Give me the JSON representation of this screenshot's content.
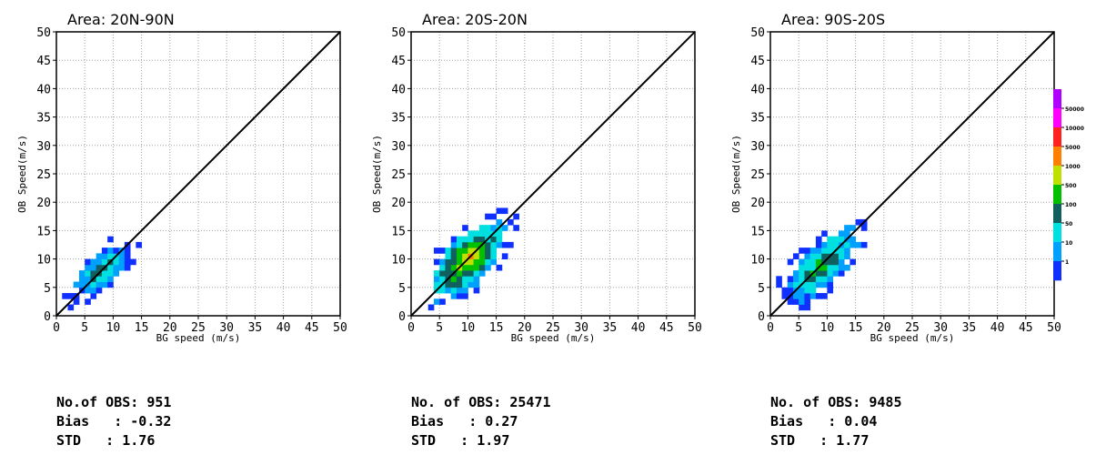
{
  "chart_data": [
    {
      "type": "heatmap",
      "title": "Area: 20N-90N",
      "xlabel": "BG speed (m/s)",
      "ylabel": "OB Speed(m/s)",
      "xlim": [
        0,
        50
      ],
      "ylim": [
        0,
        50
      ],
      "ticks": [
        0,
        5,
        10,
        15,
        20,
        25,
        30,
        35,
        40,
        45,
        50
      ],
      "tick_labels": [
        "0",
        "5",
        "10",
        "15",
        "20",
        "25",
        "30",
        "35",
        "40",
        "45",
        "50"
      ],
      "grid": true,
      "reference_line": "y = x",
      "density_center": [
        8,
        8
      ],
      "density_spread": [
        4.5,
        4.5
      ],
      "peak_level": 3,
      "spread_along": 0.55,
      "spread_across": 0.35,
      "max_extent": 19,
      "seed": 11,
      "stats": {
        "n_obs_label": "No.of OBS:",
        "n_obs": "951",
        "bias_label": "Bias   :",
        "bias": "-0.32",
        "std_label": "STD   :",
        "std": "1.76"
      }
    },
    {
      "type": "heatmap",
      "title": "Area: 20S-20N",
      "xlabel": "BG speed (m/s)",
      "ylabel": "OB Speed(m/s)",
      "xlim": [
        0,
        50
      ],
      "ylim": [
        0,
        50
      ],
      "ticks": [
        0,
        5,
        10,
        15,
        20,
        25,
        30,
        35,
        40,
        45,
        50
      ],
      "tick_labels": [
        "0",
        "5",
        "10",
        "15",
        "20",
        "25",
        "30",
        "35",
        "40",
        "45",
        "50"
      ],
      "grid": true,
      "reference_line": "y = x",
      "density_center": [
        10,
        10
      ],
      "density_spread": [
        6,
        6
      ],
      "peak_level": 6,
      "spread_along": 0.6,
      "spread_across": 0.4,
      "max_extent": 29,
      "seed": 23,
      "stats": {
        "n_obs_label": "No. of OBS:",
        "n_obs": "25471",
        "bias_label": "Bias   :",
        "bias": "0.27",
        "std_label": "STD   :",
        "std": "1.97"
      }
    },
    {
      "type": "heatmap",
      "title": "Area: 90S-20S",
      "xlabel": "BG speed (m/s)",
      "ylabel": "OB Speed(m/s)",
      "xlim": [
        0,
        50
      ],
      "ylim": [
        0,
        50
      ],
      "ticks": [
        0,
        5,
        10,
        15,
        20,
        25,
        30,
        35,
        40,
        45,
        50
      ],
      "tick_labels": [
        "0",
        "5",
        "10",
        "15",
        "20",
        "25",
        "30",
        "35",
        "40",
        "45",
        "50"
      ],
      "grid": true,
      "reference_line": "y = x",
      "density_center": [
        9,
        9
      ],
      "density_spread": [
        5.5,
        5.5
      ],
      "peak_level": 4,
      "spread_along": 0.6,
      "spread_across": 0.38,
      "max_extent": 30,
      "seed": 37,
      "stats": {
        "n_obs_label": "No. of OBS:",
        "n_obs": "9485",
        "bias_label": "Bias   :",
        "bias": "0.04",
        "std_label": "STD   :",
        "std": "1.77"
      }
    }
  ],
  "colorbar": {
    "labels": [
      "1",
      "10",
      "50",
      "100",
      "500",
      "1000",
      "5000",
      "10000",
      "50000"
    ],
    "colors": [
      "#1030ff",
      "#00a0ff",
      "#00e0e0",
      "#106060",
      "#00c000",
      "#c0e000",
      "#ff8000",
      "#ff2020",
      "#ff00ff",
      "#b000ff"
    ]
  }
}
